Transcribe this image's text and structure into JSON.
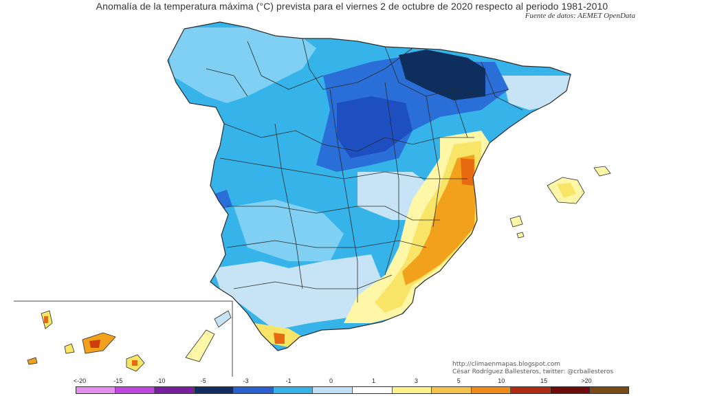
{
  "title": "Anomalía de la temperatura máxima (°C) prevista para el viernes 2 de octubre de 2020 respecto al periodo 1981-2010",
  "source": "Fuente de datos: AEMET OpenData",
  "credits": {
    "url": "http://climaenmapas.blogspot.com",
    "author": "César Rodríguez Ballesteros, twitter: @crballesteros"
  },
  "legend": {
    "ticks": [
      "<-20",
      "-15",
      "-10",
      "-5",
      "-3",
      "-1",
      "0",
      "1",
      "3",
      "5",
      "10",
      "15",
      ">20"
    ],
    "colors": [
      "#e58ef0",
      "#c046e0",
      "#7a1ea0",
      "#0e2f5e",
      "#2a5fd0",
      "#36b4ea",
      "#bfe0f5",
      "#ffffff",
      "#fff38a",
      "#f5c34b",
      "#f08a18",
      "#b02a14",
      "#6e0c0c",
      "#7a4a14"
    ]
  },
  "map_colors": {
    "light_cyan": "#7fd0f2",
    "cyan": "#36b4ea",
    "pale_blue": "#c7e4f6",
    "mid_blue": "#2a6fd8",
    "deep_blue": "#1d4fc0",
    "navy": "#0e2f5e",
    "pale_yellow": "#fff7a8",
    "yellow": "#f8e466",
    "orange": "#f2a11c",
    "dark_orange": "#e86a10",
    "red": "#d03c10",
    "border": "#2a2a2a"
  }
}
